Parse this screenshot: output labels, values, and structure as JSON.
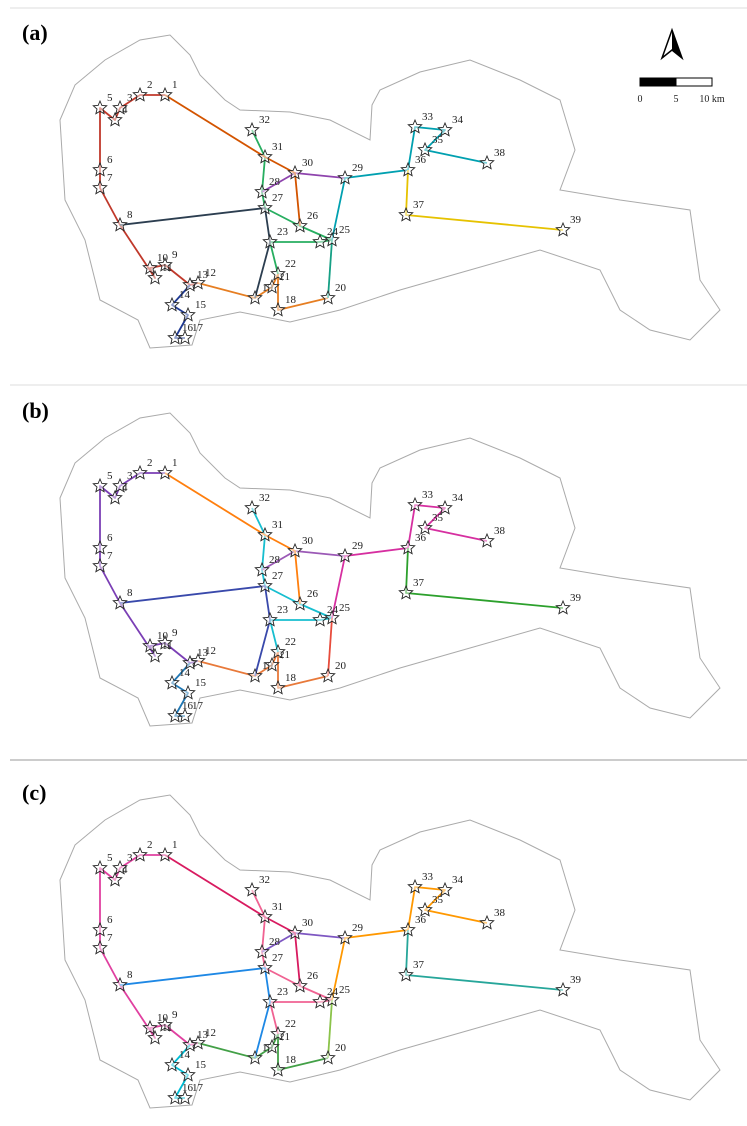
{
  "panels": [
    {
      "label": "(a)",
      "stations": [
        "1",
        "2",
        "3",
        "4",
        "5",
        "6",
        "7",
        "8",
        "9",
        "10",
        "11",
        "12",
        "13",
        "14",
        "15",
        "16",
        "17",
        "18",
        "19",
        "20",
        "21",
        "22",
        "23",
        "24",
        "25",
        "26",
        "27",
        "28",
        "29",
        "30",
        "31",
        "32",
        "33",
        "34",
        "35",
        "36",
        "37",
        "38",
        "39"
      ]
    },
    {
      "label": "(b)",
      "stations": [
        "1",
        "2",
        "3",
        "4",
        "5",
        "6",
        "7",
        "8",
        "9",
        "10",
        "11",
        "12",
        "13",
        "14",
        "15",
        "16",
        "17",
        "18",
        "19",
        "20",
        "21",
        "22",
        "23",
        "24",
        "25",
        "26",
        "27",
        "28",
        "29",
        "30",
        "31",
        "32",
        "33",
        "34",
        "35",
        "36",
        "37",
        "38",
        "39"
      ]
    },
    {
      "label": "(c)",
      "stations": [
        "1",
        "2",
        "3",
        "4",
        "5",
        "6",
        "7",
        "8",
        "9",
        "10",
        "11",
        "12",
        "13",
        "14",
        "15",
        "16",
        "17",
        "18",
        "19",
        "20",
        "21",
        "22",
        "23",
        "24",
        "25",
        "26",
        "27",
        "28",
        "29",
        "30",
        "31",
        "32",
        "33",
        "34",
        "35",
        "36",
        "37",
        "38",
        "39"
      ]
    }
  ],
  "scale_bar": {
    "ticks": [
      "0",
      "5",
      "10 km"
    ]
  }
}
